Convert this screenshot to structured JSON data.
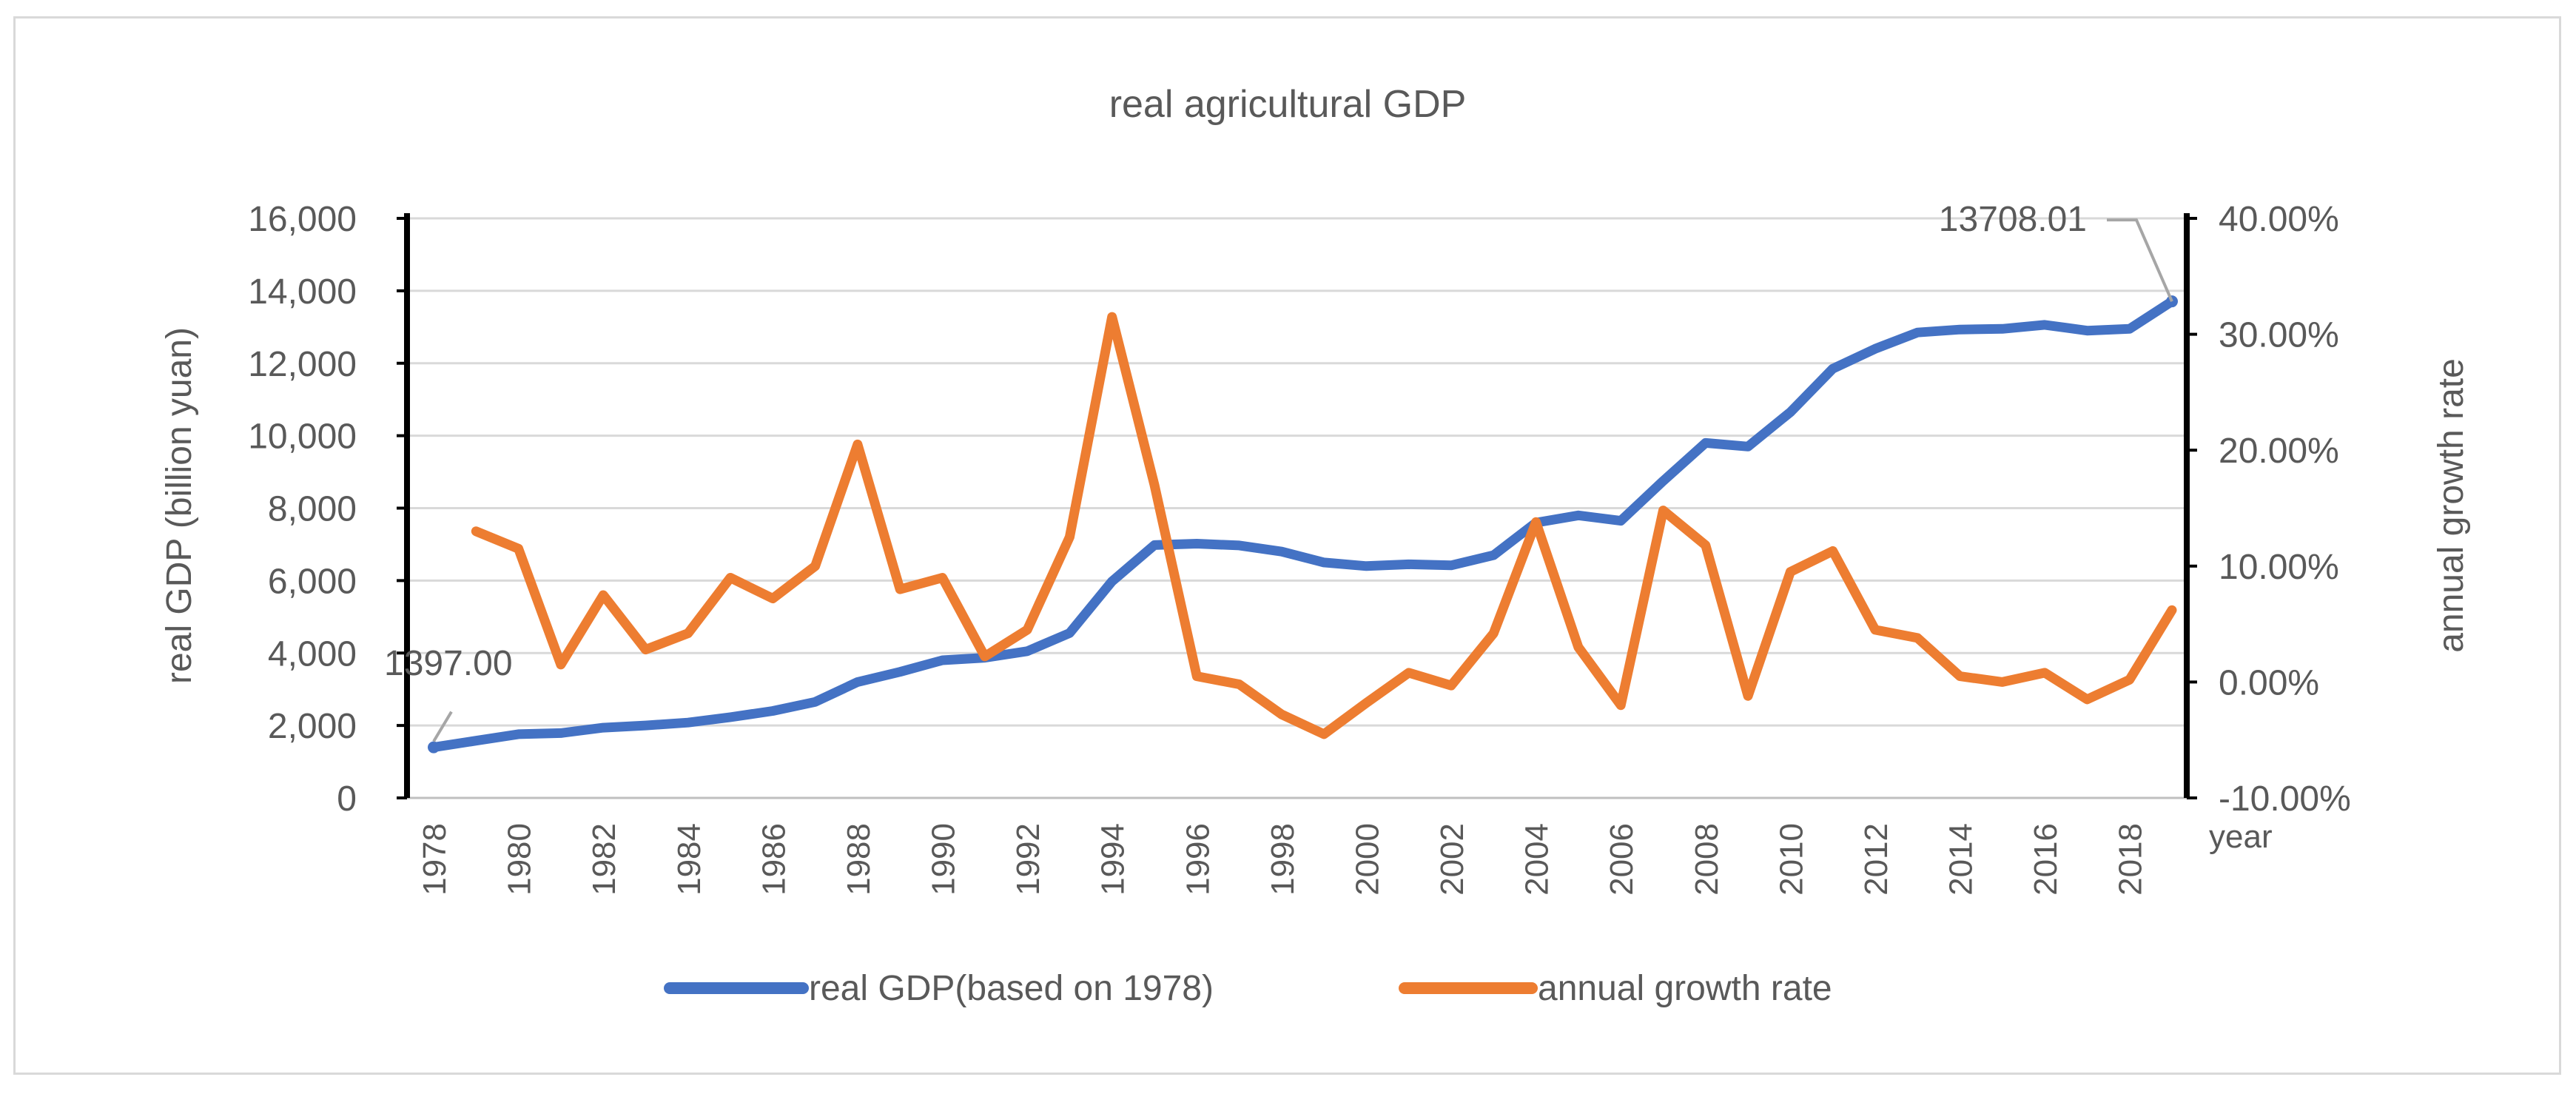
{
  "chart_data": {
    "type": "line",
    "title": "real agricultural GDP",
    "xlabel": "year",
    "ylabel_left": "real GDP (billion yuan)",
    "ylabel_right": "annual growth rate",
    "ylim_left": [
      0,
      16000
    ],
    "ylim_right": [
      -10,
      40
    ],
    "y_ticks_left": [
      "0",
      "2,000",
      "4,000",
      "6,000",
      "8,000",
      "10,000",
      "12,000",
      "14,000",
      "16,000"
    ],
    "y_ticks_right": [
      "-10.00%",
      "0.00%",
      "10.00%",
      "20.00%",
      "30.00%",
      "40.00%"
    ],
    "x": [
      1978,
      1979,
      1980,
      1981,
      1982,
      1983,
      1984,
      1985,
      1986,
      1987,
      1988,
      1989,
      1990,
      1991,
      1992,
      1993,
      1994,
      1995,
      1996,
      1997,
      1998,
      1999,
      2000,
      2001,
      2002,
      2003,
      2004,
      2005,
      2006,
      2007,
      2008,
      2009,
      2010,
      2011,
      2012,
      2013,
      2014,
      2015,
      2016,
      2017,
      2018,
      2019
    ],
    "x_tick_labels": [
      "1978",
      "1980",
      "1982",
      "1984",
      "1986",
      "1988",
      "1990",
      "1992",
      "1994",
      "1996",
      "1998",
      "2000",
      "2002",
      "2004",
      "2006",
      "2008",
      "2010",
      "2012",
      "2014",
      "2016",
      "2018"
    ],
    "grid": true,
    "legend_position": "bottom",
    "series": [
      {
        "name": "real GDP(based on 1978)",
        "axis": "left",
        "color": "#4472c4",
        "values": [
          1397,
          1580,
          1760,
          1790,
          1940,
          2000,
          2080,
          2230,
          2400,
          2650,
          3200,
          3480,
          3800,
          3870,
          4050,
          4550,
          5980,
          6980,
          7020,
          6970,
          6800,
          6500,
          6400,
          6450,
          6420,
          6700,
          7600,
          7800,
          7650,
          8750,
          9800,
          9700,
          10650,
          11850,
          12400,
          12850,
          12930,
          12950,
          13060,
          12900,
          12950,
          13708.01
        ],
        "point_labels": [
          {
            "index": 0,
            "text": "1397.00"
          },
          {
            "index": 41,
            "text": "13708.01"
          }
        ]
      },
      {
        "name": "annual growth rate",
        "axis": "right",
        "color": "#ed7d31",
        "values": [
          null,
          13,
          11.5,
          1.5,
          7.5,
          2.8,
          4.2,
          9,
          7.2,
          10,
          20.5,
          8,
          9,
          2.2,
          4.5,
          12.5,
          31.5,
          17,
          0.5,
          -0.2,
          -2.8,
          -4.5,
          -1.8,
          0.8,
          -0.3,
          4.2,
          13.8,
          3,
          -2,
          14.8,
          11.8,
          -1.2,
          9.5,
          11.3,
          4.5,
          3.8,
          0.5,
          0,
          0.8,
          -1.5,
          0.2,
          6.2
        ]
      }
    ]
  }
}
